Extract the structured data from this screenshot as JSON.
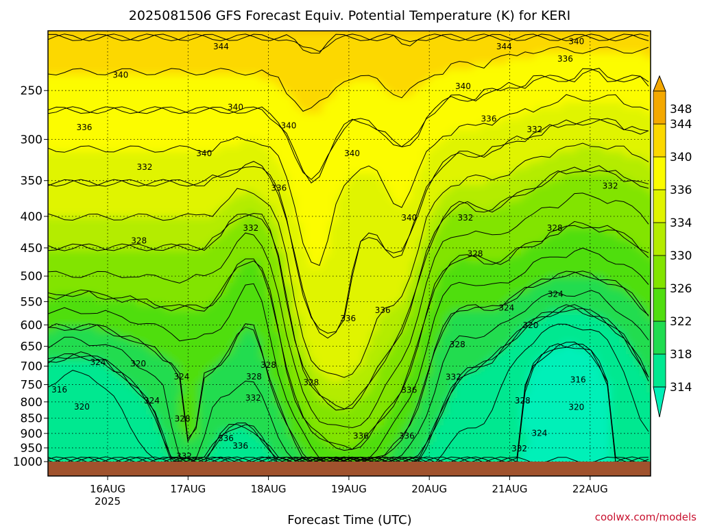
{
  "chart_data": {
    "type": "heatmap",
    "title": "2025081506 GFS Forecast Equiv. Potential Temperature (K) for KERI",
    "xlabel": "Forecast Time (UTC)",
    "ylabel": "",
    "x_ticks": [
      {
        "label": "16AUG",
        "sublabel": "2025"
      },
      {
        "label": "17AUG",
        "sublabel": ""
      },
      {
        "label": "18AUG",
        "sublabel": ""
      },
      {
        "label": "19AUG",
        "sublabel": ""
      },
      {
        "label": "20AUG",
        "sublabel": ""
      },
      {
        "label": "21AUG",
        "sublabel": ""
      },
      {
        "label": "22AUG",
        "sublabel": ""
      }
    ],
    "y_ticks": [
      250,
      300,
      350,
      400,
      450,
      500,
      550,
      600,
      650,
      700,
      750,
      800,
      850,
      900,
      950,
      1000
    ],
    "y_range": [
      1000,
      200
    ],
    "y_scale": "log",
    "x_range_hours": [
      -17,
      162
    ],
    "grid": true,
    "colorbar": {
      "levels": [
        314,
        318,
        322,
        326,
        330,
        334,
        336,
        340,
        344,
        348
      ],
      "colors": [
        "#00f0b8",
        "#00e890",
        "#20dc50",
        "#50de10",
        "#82e400",
        "#b4ec00",
        "#e0f400",
        "#fcfc00",
        "#fcd800",
        "#f4a800"
      ],
      "extend": "both"
    },
    "contour_labels": [
      {
        "text": "344",
        "d": 1.41,
        "p": 212
      },
      {
        "text": "344",
        "d": 4.93,
        "p": 212
      },
      {
        "text": "340",
        "d": 5.83,
        "p": 208
      },
      {
        "text": "336",
        "d": 5.69,
        "p": 222
      },
      {
        "text": "340",
        "d": 0.16,
        "p": 236
      },
      {
        "text": "340",
        "d": 4.42,
        "p": 246
      },
      {
        "text": "340",
        "d": 1.59,
        "p": 266
      },
      {
        "text": "340",
        "d": 2.25,
        "p": 285
      },
      {
        "text": "336",
        "d": -0.29,
        "p": 287
      },
      {
        "text": "336",
        "d": 4.74,
        "p": 278
      },
      {
        "text": "332",
        "d": 5.31,
        "p": 289
      },
      {
        "text": "340",
        "d": 1.2,
        "p": 316
      },
      {
        "text": "340",
        "d": 3.04,
        "p": 316
      },
      {
        "text": "332",
        "d": 0.46,
        "p": 333
      },
      {
        "text": "336",
        "d": 2.13,
        "p": 360
      },
      {
        "text": "332",
        "d": 6.25,
        "p": 357
      },
      {
        "text": "340",
        "d": 3.75,
        "p": 402
      },
      {
        "text": "332",
        "d": 4.45,
        "p": 402
      },
      {
        "text": "332",
        "d": 1.78,
        "p": 418
      },
      {
        "text": "328",
        "d": 5.56,
        "p": 418
      },
      {
        "text": "328",
        "d": 0.39,
        "p": 438
      },
      {
        "text": "328",
        "d": 4.57,
        "p": 460
      },
      {
        "text": "324",
        "d": 5.57,
        "p": 535
      },
      {
        "text": "336",
        "d": 3.42,
        "p": 568
      },
      {
        "text": "324",
        "d": 4.96,
        "p": 563
      },
      {
        "text": "336",
        "d": 2.99,
        "p": 586
      },
      {
        "text": "320",
        "d": 5.26,
        "p": 601
      },
      {
        "text": "328",
        "d": 4.35,
        "p": 646
      },
      {
        "text": "324",
        "d": -0.12,
        "p": 690
      },
      {
        "text": "320",
        "d": 0.38,
        "p": 694
      },
      {
        "text": "328",
        "d": 2.0,
        "p": 697
      },
      {
        "text": "324",
        "d": 0.92,
        "p": 728
      },
      {
        "text": "328",
        "d": 1.82,
        "p": 728
      },
      {
        "text": "332",
        "d": 4.3,
        "p": 729
      },
      {
        "text": "328",
        "d": 2.53,
        "p": 744
      },
      {
        "text": "316",
        "d": 5.85,
        "p": 737
      },
      {
        "text": "316",
        "d": -0.6,
        "p": 764
      },
      {
        "text": "336",
        "d": 3.75,
        "p": 765
      },
      {
        "text": "332",
        "d": 1.81,
        "p": 788
      },
      {
        "text": "324",
        "d": 0.55,
        "p": 796
      },
      {
        "text": "328",
        "d": 5.16,
        "p": 796
      },
      {
        "text": "320",
        "d": -0.32,
        "p": 815
      },
      {
        "text": "320",
        "d": 5.83,
        "p": 816
      },
      {
        "text": "328",
        "d": 0.93,
        "p": 852
      },
      {
        "text": "324",
        "d": 5.37,
        "p": 899
      },
      {
        "text": "336",
        "d": 3.15,
        "p": 909
      },
      {
        "text": "336",
        "d": 3.72,
        "p": 909
      },
      {
        "text": "336",
        "d": 1.47,
        "p": 917
      },
      {
        "text": "336",
        "d": 1.65,
        "p": 943
      },
      {
        "text": "332",
        "d": 5.12,
        "p": 952
      },
      {
        "text": "332",
        "d": 0.95,
        "p": 980
      }
    ]
  },
  "footer": {
    "credit": "coolwx.com/models"
  }
}
